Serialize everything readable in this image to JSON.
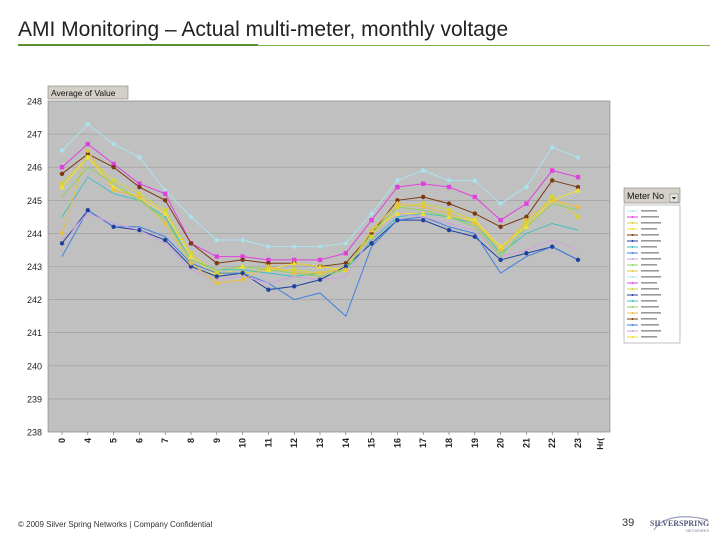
{
  "slide": {
    "title": "AMI Monitoring – Actual multi-meter, monthly voltage",
    "footer": "© 2009 Silver Spring Networks | Company Confidential",
    "page_number": "39",
    "logo_text": "SILVERSPRING",
    "logo_subtext": "NETWORKS"
  },
  "colors": {
    "plot_background": "#c0c0c0",
    "title_rule": "#7fb24a"
  },
  "chart_data": {
    "type": "line",
    "field_button": "Average of Value",
    "legend_title": "Meter No",
    "legend_position": "right",
    "x_field_label": "Hr(",
    "categories": [
      "0",
      "4",
      "5",
      "6",
      "7",
      "8",
      "9",
      "10",
      "11",
      "12",
      "13",
      "14",
      "15",
      "16",
      "17",
      "18",
      "19",
      "20",
      "21",
      "22",
      "23"
    ],
    "ylim": [
      238,
      248
    ],
    "yticks": [
      238,
      239,
      240,
      241,
      242,
      243,
      244,
      245,
      246,
      247,
      248
    ],
    "grid": true,
    "series": [
      {
        "color": "#a8e4f0",
        "marker": "diamond",
        "values": [
          246.5,
          247.3,
          246.7,
          246.3,
          245.3,
          244.5,
          243.8,
          243.8,
          243.6,
          243.6,
          243.6,
          243.7,
          244.6,
          245.6,
          245.9,
          245.6,
          245.6,
          244.9,
          245.4,
          246.6,
          246.3
        ]
      },
      {
        "color": "#e040e0",
        "marker": "square",
        "values": [
          246.0,
          246.7,
          246.1,
          245.5,
          245.2,
          243.7,
          243.3,
          243.3,
          243.2,
          243.2,
          243.2,
          243.4,
          244.4,
          245.4,
          245.5,
          245.4,
          245.1,
          244.4,
          244.9,
          245.9,
          245.7
        ]
      },
      {
        "color": "#7b3a10",
        "marker": "circle",
        "values": [
          245.8,
          246.4,
          246.0,
          245.4,
          245.0,
          243.7,
          243.1,
          243.2,
          243.1,
          243.1,
          243.0,
          243.1,
          244.0,
          245.0,
          245.1,
          244.9,
          244.6,
          244.2,
          244.5,
          245.6,
          245.4
        ]
      },
      {
        "color": "#d4d43a",
        "marker": "square",
        "values": [
          245.5,
          246.3,
          245.6,
          245.2,
          244.7,
          243.4,
          242.8,
          242.8,
          242.9,
          242.9,
          242.8,
          243.0,
          243.9,
          244.8,
          244.9,
          244.7,
          244.4,
          243.5,
          244.3,
          245.1,
          244.5
        ]
      },
      {
        "color": "#f0e030",
        "marker": "triangle",
        "values": [
          245.4,
          246.3,
          245.4,
          245.1,
          244.6,
          243.3,
          242.7,
          243.0,
          242.9,
          243.1,
          243.0,
          242.9,
          244.1,
          244.6,
          244.6,
          244.5,
          244.4,
          243.6,
          244.2,
          245.0,
          245.3
        ]
      },
      {
        "color": "#40c0c0",
        "marker": "none",
        "values": [
          244.5,
          245.7,
          245.2,
          245.0,
          244.5,
          243.2,
          242.9,
          242.9,
          242.8,
          242.7,
          242.8,
          242.9,
          243.8,
          244.5,
          244.6,
          244.5,
          244.3,
          243.4,
          244.0,
          244.3,
          244.1
        ]
      },
      {
        "color": "#2040a0",
        "marker": "circle",
        "values": [
          243.7,
          244.7,
          244.2,
          244.1,
          243.8,
          243.0,
          242.7,
          242.8,
          242.3,
          242.4,
          242.6,
          243.0,
          243.7,
          244.4,
          244.4,
          244.1,
          243.9,
          243.2,
          243.4,
          243.6,
          243.2
        ]
      },
      {
        "color": "#4080e0",
        "marker": "none",
        "values": [
          243.3,
          244.7,
          244.2,
          244.2,
          243.9,
          243.1,
          242.8,
          242.8,
          242.5,
          242.0,
          242.2,
          241.5,
          243.6,
          244.4,
          244.5,
          244.2,
          244.0,
          242.8,
          243.3,
          243.6,
          243.2
        ]
      },
      {
        "color": "#d0a0e0",
        "marker": "none",
        "values": [
          243.8,
          244.6,
          244.3,
          244.1,
          243.7,
          242.9,
          242.6,
          242.7,
          242.5,
          242.7,
          242.6,
          242.7,
          243.9,
          244.6,
          244.5,
          244.3,
          244.1,
          243.3,
          243.5,
          243.8,
          243.5
        ]
      },
      {
        "color": "#e8c040",
        "marker": "diamond",
        "values": [
          244.0,
          246.5,
          245.3,
          245.1,
          244.3,
          243.1,
          242.5,
          242.6,
          243.0,
          242.8,
          242.8,
          242.9,
          244.1,
          244.9,
          244.8,
          244.6,
          244.3,
          243.5,
          244.4,
          245.0,
          244.8
        ]
      },
      {
        "color": "#90d060",
        "marker": "none",
        "values": [
          245.1,
          246.0,
          245.5,
          245.0,
          244.4,
          243.2,
          242.9,
          243.0,
          242.9,
          242.8,
          242.7,
          242.9,
          244.0,
          244.8,
          244.7,
          244.5,
          244.2,
          243.3,
          244.2,
          244.9,
          244.7
        ]
      }
    ]
  }
}
